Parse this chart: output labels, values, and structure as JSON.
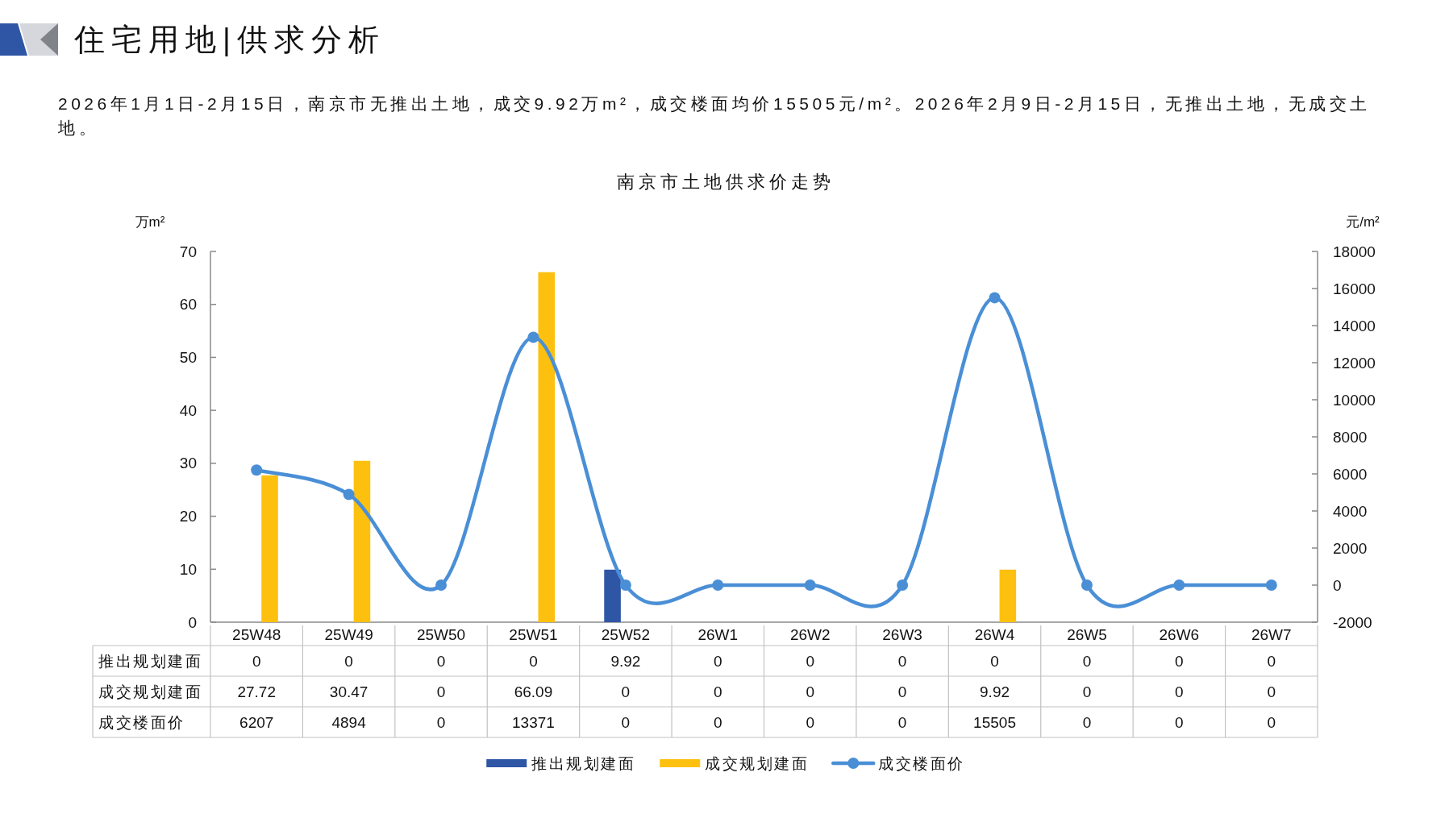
{
  "chart_data": {
    "type": "bar",
    "title": "南京市土地供求价走势",
    "annotations": [
      "住宅用地|供求分析",
      "2026年1月1日-2月15日，南京市无推出土地，成交9.92万m²，成交楼面均价15505元/m²。2026年2月9日-2月15日，无推出土地，无成交土地。"
    ],
    "ylabel": "万m²",
    "y2label": "元/m²",
    "categories": [
      "25W48",
      "25W49",
      "25W50",
      "25W51",
      "25W52",
      "26W1",
      "26W2",
      "26W3",
      "26W4",
      "26W5",
      "26W6",
      "26W7"
    ],
    "series": [
      {
        "name": "推出规划建面",
        "color": "#2f55a5",
        "values": [
          0,
          0,
          0,
          0,
          9.92,
          0,
          0,
          0,
          0,
          0,
          0,
          0
        ]
      },
      {
        "name": "成交规划建面",
        "color": "#fdc00f",
        "values": [
          27.72,
          30.47,
          0,
          66.09,
          0,
          0,
          0,
          0,
          9.92,
          0,
          0,
          0
        ]
      },
      {
        "name": "成交楼面价",
        "type": "line",
        "axis": "y2",
        "color": "#4a8fd6",
        "marker": "circle",
        "values": [
          6207,
          4894,
          0,
          13371,
          0,
          0,
          0,
          0,
          15505,
          0,
          0,
          0
        ]
      }
    ],
    "ylim": [
      0,
      70
    ],
    "yticks": [
      0,
      10,
      20,
      30,
      40,
      50,
      60,
      70
    ],
    "y2lim": [
      -2000,
      18000
    ],
    "y2ticks": [
      -2000,
      0,
      2000,
      4000,
      6000,
      8000,
      10000,
      12000,
      14000,
      16000,
      18000
    ],
    "data_labels": true,
    "legend": "bottom"
  }
}
